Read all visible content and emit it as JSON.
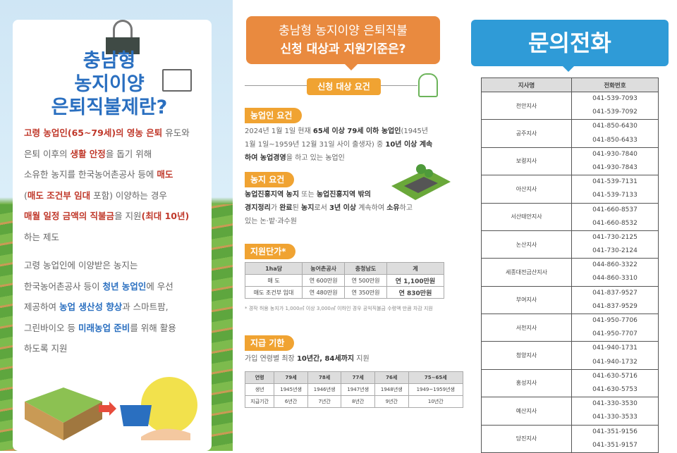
{
  "left": {
    "title": [
      "충남형",
      "농지이양",
      "은퇴직불제란?"
    ],
    "para1": [
      [
        {
          "t": "고령 농업인(65~79세)의 영농 은퇴",
          "s": "red"
        },
        {
          "t": " 유도와"
        }
      ],
      [
        {
          "t": "은퇴 이후의 "
        },
        {
          "t": "생활 안정",
          "s": "red"
        },
        {
          "t": "을 돕기 위해"
        }
      ],
      [
        {
          "t": "소유한 농지를 한국농어촌공사 등에 "
        },
        {
          "t": "매도",
          "s": "red"
        }
      ],
      [
        {
          "t": "("
        },
        {
          "t": "매도 조건부 임대",
          "s": "red"
        },
        {
          "t": " 포함) 이양하는 경우"
        }
      ],
      [
        {
          "t": "매월 일정 금액의 직불금",
          "s": "red"
        },
        {
          "t": "을 지원"
        },
        {
          "t": "(최대 10년)",
          "s": "red"
        }
      ],
      [
        {
          "t": "하는 제도"
        }
      ]
    ],
    "para2": [
      [
        {
          "t": "고령 농업인에 이양받은 농지는"
        }
      ],
      [
        {
          "t": "한국농어촌공사 등이 "
        },
        {
          "t": "청년 농업인",
          "s": "blue"
        },
        {
          "t": "에 우선"
        }
      ],
      [
        {
          "t": "제공하여 "
        },
        {
          "t": "농업 생산성 향상",
          "s": "blue"
        },
        {
          "t": "과 스마트팜,"
        }
      ],
      [
        {
          "t": "그린바이오 등 "
        },
        {
          "t": "미래농업 준비",
          "s": "blue"
        },
        {
          "t": "를 위해 활용"
        }
      ],
      [
        {
          "t": "하도록 지원"
        }
      ]
    ]
  },
  "middle": {
    "bubble_line1": "충남형 농지이양 은퇴직불",
    "bubble_line2": "신청 대상과 지원기준은?",
    "section_tag": "신청 대상 요건",
    "farmer_req": {
      "tag": "농업인 요건",
      "text": [
        [
          {
            "t": "2024년 1월 1일 현재 "
          },
          {
            "t": "65세 이상 79세 이하 농업인",
            "s": "bold"
          },
          {
            "t": "(1945년"
          }
        ],
        [
          {
            "t": "1월 1일~1959년 12월 31일 사이 출생자) 중 "
          },
          {
            "t": "10년 이상 계속",
            "s": "bold"
          }
        ],
        [
          {
            "t": "하여 농업경영",
            "s": "bold"
          },
          {
            "t": "을 하고 있는 농업인"
          }
        ]
      ]
    },
    "land_req": {
      "tag": "농지 요건",
      "text": [
        [
          {
            "t": "농업진흥지역 농지",
            "s": "bold"
          },
          {
            "t": " 또는 "
          },
          {
            "t": "농업진흥지역 밖의",
            "s": "bold"
          }
        ],
        [
          {
            "t": "경지정리",
            "s": "bold"
          },
          {
            "t": "가 "
          },
          {
            "t": "완료",
            "s": "bold"
          },
          {
            "t": "된 "
          },
          {
            "t": "농지",
            "s": "bold"
          },
          {
            "t": "로서 "
          },
          {
            "t": "3년 이상",
            "s": "bold"
          },
          {
            "t": " 계속하여 "
          },
          {
            "t": "소유",
            "s": "bold"
          },
          {
            "t": "하고"
          }
        ],
        [
          {
            "t": "있는 논·밭·과수원"
          }
        ]
      ]
    },
    "unit_price": {
      "tag": "지원단가*",
      "headers": [
        "1ha당",
        "농어촌공사",
        "충청남도",
        "계"
      ],
      "rows": [
        [
          "매 도",
          "연 600만원",
          "연 500만원",
          "연 1,100만원"
        ],
        [
          "매도 조건부 임대",
          "연 480만원",
          "연 350만원",
          "연 830만원"
        ]
      ],
      "note": "* 경작 허용 농지가 1,000㎡ 이상 3,000㎡ 이하인 경우 공익직불금 수령액 만큼 차감 지원"
    },
    "payment_period": {
      "tag": "지급 기한",
      "text": [
        {
          "t": "가입 연령별 최장 "
        },
        {
          "t": "10년간, 84세까지",
          "s": "bold"
        },
        {
          "t": " 지원"
        }
      ],
      "headers": [
        "연령",
        "79세",
        "78세",
        "77세",
        "76세",
        "75~65세"
      ],
      "rows": [
        [
          "생년",
          "1945년생",
          "1946년생",
          "1947년생",
          "1948년생",
          "1949~1959년생"
        ],
        [
          "지급기간",
          "6년간",
          "7년간",
          "8년간",
          "9년간",
          "10년간"
        ]
      ]
    }
  },
  "right": {
    "title": "문의전화",
    "headers": [
      "지사명",
      "전화번호"
    ],
    "branches": [
      {
        "name": "천안지사",
        "phones": [
          "041-539-7093",
          "041-539-7092"
        ]
      },
      {
        "name": "공주지사",
        "phones": [
          "041-850-6430",
          "041-850-6433"
        ]
      },
      {
        "name": "보령지사",
        "phones": [
          "041-930-7840",
          "041-930-7843"
        ]
      },
      {
        "name": "아산지사",
        "phones": [
          "041-539-7131",
          "041-539-7133"
        ]
      },
      {
        "name": "서산태안지사",
        "phones": [
          "041-660-8537",
          "041-660-8532"
        ]
      },
      {
        "name": "논산지사",
        "phones": [
          "041-730-2125",
          "041-730-2124"
        ]
      },
      {
        "name": "세종대전금산지사",
        "phones": [
          "044-860-3322",
          "044-860-3310"
        ]
      },
      {
        "name": "부여지사",
        "phones": [
          "041-837-9527",
          "041-837-9529"
        ]
      },
      {
        "name": "서천지사",
        "phones": [
          "041-950-7706",
          "041-950-7707"
        ]
      },
      {
        "name": "청양지사",
        "phones": [
          "041-940-1731",
          "041-940-1732"
        ]
      },
      {
        "name": "홍성지사",
        "phones": [
          "041-630-5716",
          "041-630-5753"
        ]
      },
      {
        "name": "예산지사",
        "phones": [
          "041-330-3530",
          "041-330-3533"
        ]
      },
      {
        "name": "당진지사",
        "phones": [
          "041-351-9156",
          "041-351-9157"
        ]
      }
    ]
  },
  "colors": {
    "blue": "#2a6fc0",
    "red": "#c0392b",
    "orange": "#e98a3f",
    "tag": "#f0a332",
    "phone_header": "#2f9bd7"
  }
}
